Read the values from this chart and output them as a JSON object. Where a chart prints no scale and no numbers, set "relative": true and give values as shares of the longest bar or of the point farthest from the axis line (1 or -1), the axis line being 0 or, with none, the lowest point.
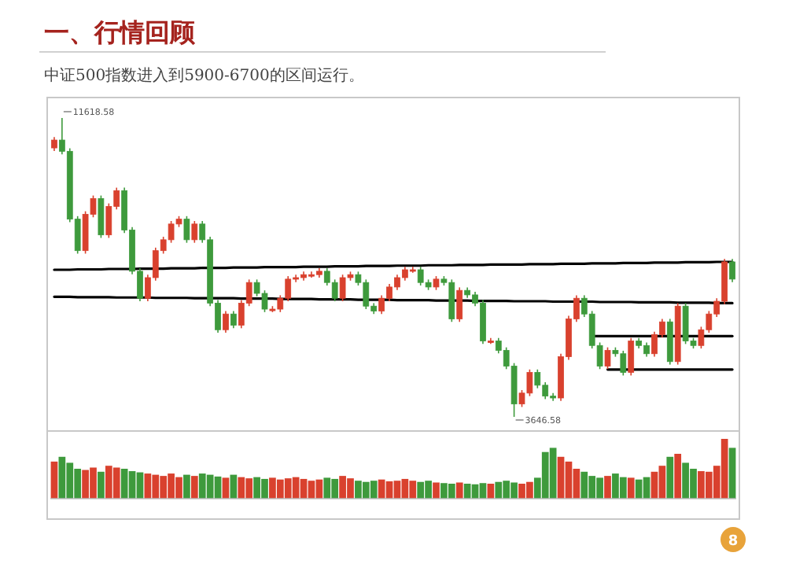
{
  "chart_data": [
    {
      "type": "candlestick",
      "title": "一、行情回顾",
      "subtitle": "中证500指数进入到5900-6700的区间运行。",
      "categories": [
        null,
        null,
        null,
        null,
        null,
        null,
        null,
        null,
        null,
        null,
        null,
        null,
        null,
        null,
        null,
        null,
        null,
        null,
        null,
        null,
        null,
        null,
        null,
        null,
        null,
        null,
        null,
        null,
        null,
        null,
        null,
        null,
        null,
        null,
        null,
        null,
        null,
        null,
        null,
        null,
        null,
        null,
        null,
        null,
        null,
        null,
        null,
        null,
        null,
        null,
        null,
        null,
        null,
        null,
        null,
        null,
        null,
        null,
        null,
        null,
        null,
        null,
        null,
        null,
        null,
        null,
        null,
        null,
        null,
        null,
        null,
        null,
        null,
        null,
        null,
        null,
        null,
        null,
        null,
        null,
        null,
        null,
        null,
        null,
        null,
        null,
        null,
        null
      ],
      "ohlc": [
        [
          10820,
          11110,
          10740,
          11030
        ],
        [
          11030,
          11618.58,
          10650,
          10730
        ],
        [
          10730,
          10810,
          8840,
          8920
        ],
        [
          8920,
          9000,
          8000,
          8080
        ],
        [
          8080,
          9130,
          8000,
          9050
        ],
        [
          9050,
          9550,
          8970,
          9470
        ],
        [
          9470,
          9550,
          8420,
          8500
        ],
        [
          8500,
          9340,
          8420,
          9260
        ],
        [
          9260,
          9760,
          9180,
          9680
        ],
        [
          9680,
          9760,
          8550,
          8630
        ],
        [
          8630,
          8710,
          7450,
          7530
        ],
        [
          7530,
          7610,
          6730,
          6810
        ],
        [
          6810,
          7440,
          6730,
          7360
        ],
        [
          7360,
          8160,
          7280,
          8080
        ],
        [
          8080,
          8450,
          8000,
          8370
        ],
        [
          8370,
          8870,
          8290,
          8790
        ],
        [
          8790,
          9000,
          8710,
          8920
        ],
        [
          8920,
          9000,
          8290,
          8370
        ],
        [
          8370,
          8870,
          8290,
          8790
        ],
        [
          8790,
          8870,
          8290,
          8370
        ],
        [
          8370,
          8450,
          6600,
          6680
        ],
        [
          6680,
          6760,
          5890,
          5970
        ],
        [
          5970,
          6470,
          5890,
          6390
        ],
        [
          6390,
          6470,
          6010,
          6090
        ],
        [
          6090,
          6760,
          6010,
          6680
        ],
        [
          6680,
          7310,
          6600,
          7230
        ],
        [
          7230,
          7310,
          6860,
          6940
        ],
        [
          6940,
          7020,
          6440,
          6520
        ],
        [
          6520,
          6600,
          6440,
          6520
        ],
        [
          6520,
          6890,
          6440,
          6810
        ],
        [
          6810,
          7400,
          6730,
          7320
        ],
        [
          7320,
          7440,
          7240,
          7360
        ],
        [
          7360,
          7520,
          7280,
          7440
        ],
        [
          7440,
          7520,
          7360,
          7440
        ],
        [
          7440,
          7610,
          7360,
          7530
        ],
        [
          7530,
          7610,
          7150,
          7230
        ],
        [
          7230,
          7310,
          6730,
          6810
        ],
        [
          6810,
          7440,
          6730,
          7360
        ],
        [
          7360,
          7520,
          7280,
          7440
        ],
        [
          7440,
          7520,
          7150,
          7230
        ],
        [
          7230,
          7310,
          6520,
          6600
        ],
        [
          6600,
          6680,
          6390,
          6470
        ],
        [
          6470,
          6890,
          6390,
          6810
        ],
        [
          6810,
          7190,
          6730,
          7110
        ],
        [
          7110,
          7440,
          7030,
          7360
        ],
        [
          7360,
          7650,
          7280,
          7570
        ],
        [
          7570,
          7650,
          7490,
          7570
        ],
        [
          7570,
          7650,
          7150,
          7230
        ],
        [
          7230,
          7310,
          7030,
          7110
        ],
        [
          7110,
          7400,
          7030,
          7320
        ],
        [
          7320,
          7400,
          7150,
          7230
        ],
        [
          7230,
          7310,
          6180,
          6260
        ],
        [
          6260,
          7100,
          6180,
          7020
        ],
        [
          7020,
          7100,
          6820,
          6900
        ],
        [
          6900,
          6980,
          6600,
          6680
        ],
        [
          6680,
          6760,
          5590,
          5670
        ],
        [
          5670,
          5750,
          5590,
          5670
        ],
        [
          5670,
          5750,
          5340,
          5420
        ],
        [
          5420,
          5500,
          4920,
          5000
        ],
        [
          5000,
          5080,
          3646.58,
          3990
        ],
        [
          3990,
          4360,
          3910,
          4280
        ],
        [
          4280,
          4910,
          4200,
          4830
        ],
        [
          4830,
          4910,
          4410,
          4490
        ],
        [
          4490,
          4570,
          4120,
          4200
        ],
        [
          4200,
          4280,
          4070,
          4150
        ],
        [
          4150,
          5330,
          4070,
          5250
        ],
        [
          5250,
          6340,
          5170,
          6260
        ],
        [
          6260,
          6890,
          6180,
          6810
        ],
        [
          6810,
          6890,
          6310,
          6390
        ],
        [
          6390,
          6470,
          5470,
          5550
        ],
        [
          5550,
          5630,
          4920,
          5000
        ],
        [
          5000,
          5500,
          4920,
          5420
        ],
        [
          5420,
          5500,
          5250,
          5330
        ],
        [
          5330,
          5410,
          4750,
          4830
        ],
        [
          4830,
          5750,
          4750,
          5670
        ],
        [
          5670,
          5750,
          5470,
          5550
        ],
        [
          5550,
          5630,
          5250,
          5330
        ],
        [
          5330,
          5920,
          5250,
          5840
        ],
        [
          5840,
          6260,
          5760,
          6180
        ],
        [
          6180,
          6260,
          5040,
          5120
        ],
        [
          5120,
          6680,
          5040,
          6600
        ],
        [
          6600,
          6680,
          5590,
          5670
        ],
        [
          5670,
          5750,
          5470,
          5550
        ],
        [
          5550,
          6050,
          5470,
          5970
        ],
        [
          5970,
          6470,
          5890,
          6390
        ],
        [
          6390,
          6810,
          6310,
          6730
        ],
        [
          6730,
          7860,
          6650,
          7780
        ],
        [
          7780,
          7860,
          7240,
          7320
        ]
      ],
      "colors": [
        "#d9412e",
        "#3e9a3c",
        "#3e9a3c",
        "#3e9a3c",
        "#d9412e",
        "#d9412e",
        "#3e9a3c",
        "#d9412e",
        "#d9412e",
        "#3e9a3c",
        "#3e9a3c",
        "#3e9a3c",
        "#d9412e",
        "#d9412e",
        "#d9412e",
        "#d9412e",
        "#d9412e",
        "#3e9a3c",
        "#d9412e",
        "#3e9a3c",
        "#3e9a3c",
        "#3e9a3c",
        "#d9412e",
        "#3e9a3c",
        "#d9412e",
        "#d9412e",
        "#3e9a3c",
        "#3e9a3c",
        "#d9412e",
        "#d9412e",
        "#d9412e",
        "#d9412e",
        "#d9412e",
        "#d9412e",
        "#d9412e",
        "#3e9a3c",
        "#3e9a3c",
        "#d9412e",
        "#d9412e",
        "#3e9a3c",
        "#3e9a3c",
        "#3e9a3c",
        "#d9412e",
        "#d9412e",
        "#d9412e",
        "#d9412e",
        "#d9412e",
        "#3e9a3c",
        "#3e9a3c",
        "#d9412e",
        "#3e9a3c",
        "#3e9a3c",
        "#d9412e",
        "#3e9a3c",
        "#3e9a3c",
        "#3e9a3c",
        "#d9412e",
        "#3e9a3c",
        "#3e9a3c",
        "#3e9a3c",
        "#d9412e",
        "#d9412e",
        "#3e9a3c",
        "#3e9a3c",
        "#3e9a3c",
        "#d9412e",
        "#d9412e",
        "#d9412e",
        "#3e9a3c",
        "#3e9a3c",
        "#3e9a3c",
        "#d9412e",
        "#3e9a3c",
        "#3e9a3c",
        "#d9412e",
        "#3e9a3c",
        "#3e9a3c",
        "#d9412e",
        "#d9412e",
        "#3e9a3c",
        "#d9412e",
        "#3e9a3c",
        "#3e9a3c",
        "#d9412e",
        "#d9412e",
        "#d9412e",
        "#d9412e",
        "#3e9a3c"
      ],
      "series": [
        {
          "type": "line",
          "color": "#000000",
          "values": [
            7570,
            7570,
            7570,
            7580,
            7580,
            7580,
            7580,
            7590,
            7590,
            7590,
            7590,
            7600,
            7600,
            7600,
            7600,
            7610,
            7610,
            7610,
            7610,
            7620,
            7620,
            7620,
            7620,
            7630,
            7630,
            7630,
            7630,
            7640,
            7640,
            7640,
            7640,
            7640,
            7650,
            7650,
            7650,
            7650,
            7660,
            7660,
            7660,
            7660,
            7670,
            7670,
            7670,
            7670,
            7680,
            7680,
            7680,
            7680,
            7690,
            7690,
            7690,
            7690,
            7700,
            7700,
            7700,
            7700,
            7710,
            7710,
            7710,
            7710,
            7710,
            7720,
            7720,
            7720,
            7720,
            7730,
            7730,
            7730,
            7730,
            7740,
            7740,
            7740,
            7740,
            7750,
            7750,
            7750,
            7750,
            7760,
            7760,
            7760,
            7760,
            7770,
            7770,
            7770,
            7770,
            7780,
            7780,
            7780
          ]
        },
        {
          "type": "line",
          "color": "#000000",
          "values": [
            6850,
            6850,
            6850,
            6840,
            6840,
            6840,
            6840,
            6840,
            6830,
            6830,
            6830,
            6830,
            6830,
            6820,
            6820,
            6820,
            6820,
            6820,
            6810,
            6810,
            6810,
            6810,
            6810,
            6810,
            6800,
            6800,
            6800,
            6800,
            6800,
            6790,
            6790,
            6790,
            6790,
            6790,
            6780,
            6780,
            6780,
            6780,
            6780,
            6770,
            6770,
            6770,
            6770,
            6770,
            6760,
            6760,
            6760,
            6760,
            6760,
            6750,
            6750,
            6750,
            6750,
            6750,
            6740,
            6740,
            6740,
            6740,
            6740,
            6730,
            6730,
            6730,
            6730,
            6730,
            6720,
            6720,
            6720,
            6720,
            6720,
            6720,
            6710,
            6710,
            6710,
            6710,
            6710,
            6700,
            6700,
            6700,
            6700,
            6700,
            6690,
            6690,
            6690,
            6690,
            6690,
            6680,
            6680,
            6680
          ]
        },
        {
          "type": "line",
          "color": "#000000",
          "values": [
            null,
            null,
            null,
            null,
            null,
            null,
            null,
            null,
            null,
            null,
            null,
            null,
            null,
            null,
            null,
            null,
            null,
            null,
            null,
            null,
            null,
            null,
            null,
            null,
            null,
            null,
            null,
            null,
            null,
            null,
            null,
            null,
            null,
            null,
            null,
            null,
            null,
            null,
            null,
            null,
            null,
            null,
            null,
            null,
            null,
            null,
            null,
            null,
            null,
            null,
            null,
            null,
            null,
            null,
            null,
            null,
            null,
            null,
            null,
            null,
            null,
            null,
            null,
            null,
            null,
            null,
            null,
            null,
            null,
            5800,
            5800,
            5800,
            5800,
            5800,
            5800,
            5800,
            5800,
            5800,
            5800,
            5800,
            5800,
            5800,
            5800,
            5800,
            5800,
            5800,
            5800,
            5800
          ]
        },
        {
          "type": "line",
          "color": "#000000",
          "values": [
            null,
            null,
            null,
            null,
            null,
            null,
            null,
            null,
            null,
            null,
            null,
            null,
            null,
            null,
            null,
            null,
            null,
            null,
            null,
            null,
            null,
            null,
            null,
            null,
            null,
            null,
            null,
            null,
            null,
            null,
            null,
            null,
            null,
            null,
            null,
            null,
            null,
            null,
            null,
            null,
            null,
            null,
            null,
            null,
            null,
            null,
            null,
            null,
            null,
            null,
            null,
            null,
            null,
            null,
            null,
            null,
            null,
            null,
            null,
            null,
            null,
            null,
            null,
            null,
            null,
            null,
            null,
            null,
            null,
            null,
            null,
            4910,
            4910,
            4910,
            4910,
            4910,
            4910,
            4910,
            4910,
            4910,
            4910,
            4910,
            4910,
            4910,
            4910,
            4910,
            4910,
            4910
          ]
        }
      ],
      "annotations": [
        "11618.58",
        "3646.58",
        "8"
      ]
    },
    {
      "type": "bar",
      "relative": true,
      "categories": [
        null,
        null,
        null,
        null,
        null,
        null,
        null,
        null,
        null,
        null,
        null,
        null,
        null,
        null,
        null,
        null,
        null,
        null,
        null,
        null,
        null,
        null,
        null,
        null,
        null,
        null,
        null,
        null,
        null,
        null,
        null,
        null,
        null,
        null,
        null,
        null,
        null,
        null,
        null,
        null,
        null,
        null,
        null,
        null,
        null,
        null,
        null,
        null,
        null,
        null,
        null,
        null,
        null,
        null,
        null,
        null,
        null,
        null,
        null,
        null,
        null,
        null,
        null,
        null,
        null,
        null,
        null,
        null,
        null,
        null,
        null,
        null,
        null,
        null,
        null,
        null,
        null,
        null,
        null,
        null,
        null,
        null,
        null,
        null,
        null,
        null,
        null,
        null
      ],
      "values": [
        0.62,
        0.7,
        0.6,
        0.5,
        0.48,
        0.52,
        0.45,
        0.55,
        0.52,
        0.5,
        0.46,
        0.44,
        0.42,
        0.4,
        0.38,
        0.42,
        0.36,
        0.4,
        0.38,
        0.42,
        0.4,
        0.37,
        0.35,
        0.4,
        0.36,
        0.34,
        0.36,
        0.33,
        0.35,
        0.32,
        0.34,
        0.36,
        0.33,
        0.3,
        0.32,
        0.35,
        0.33,
        0.38,
        0.34,
        0.3,
        0.28,
        0.3,
        0.32,
        0.29,
        0.3,
        0.33,
        0.3,
        0.28,
        0.3,
        0.27,
        0.26,
        0.25,
        0.27,
        0.25,
        0.24,
        0.26,
        0.25,
        0.28,
        0.3,
        0.27,
        0.25,
        0.28,
        0.35,
        0.78,
        0.85,
        0.7,
        0.62,
        0.5,
        0.45,
        0.38,
        0.35,
        0.38,
        0.42,
        0.36,
        0.35,
        0.32,
        0.36,
        0.45,
        0.55,
        0.7,
        0.75,
        0.6,
        0.5,
        0.46,
        0.45,
        0.55,
        1,
        0.85
      ],
      "colors": [
        "#d9412e",
        "#3e9a3c",
        "#3e9a3c",
        "#3e9a3c",
        "#d9412e",
        "#d9412e",
        "#3e9a3c",
        "#d9412e",
        "#d9412e",
        "#3e9a3c",
        "#3e9a3c",
        "#3e9a3c",
        "#d9412e",
        "#d9412e",
        "#d9412e",
        "#d9412e",
        "#d9412e",
        "#3e9a3c",
        "#d9412e",
        "#3e9a3c",
        "#3e9a3c",
        "#3e9a3c",
        "#d9412e",
        "#3e9a3c",
        "#d9412e",
        "#d9412e",
        "#3e9a3c",
        "#3e9a3c",
        "#d9412e",
        "#d9412e",
        "#d9412e",
        "#d9412e",
        "#d9412e",
        "#d9412e",
        "#d9412e",
        "#3e9a3c",
        "#3e9a3c",
        "#d9412e",
        "#d9412e",
        "#3e9a3c",
        "#3e9a3c",
        "#3e9a3c",
        "#d9412e",
        "#d9412e",
        "#d9412e",
        "#d9412e",
        "#d9412e",
        "#3e9a3c",
        "#3e9a3c",
        "#d9412e",
        "#3e9a3c",
        "#3e9a3c",
        "#d9412e",
        "#3e9a3c",
        "#3e9a3c",
        "#3e9a3c",
        "#d9412e",
        "#3e9a3c",
        "#3e9a3c",
        "#3e9a3c",
        "#d9412e",
        "#d9412e",
        "#3e9a3c",
        "#3e9a3c",
        "#3e9a3c",
        "#d9412e",
        "#d9412e",
        "#d9412e",
        "#3e9a3c",
        "#3e9a3c",
        "#3e9a3c",
        "#d9412e",
        "#3e9a3c",
        "#3e9a3c",
        "#d9412e",
        "#3e9a3c",
        "#3e9a3c",
        "#d9412e",
        "#d9412e",
        "#3e9a3c",
        "#d9412e",
        "#3e9a3c",
        "#3e9a3c",
        "#d9412e",
        "#d9412e",
        "#d9412e",
        "#d9412e",
        "#3e9a3c"
      ]
    }
  ]
}
